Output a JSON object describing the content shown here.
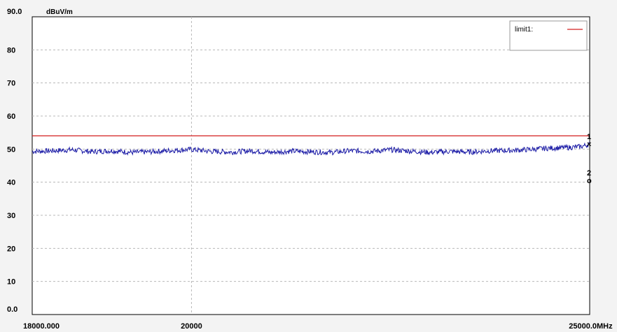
{
  "chart_data": {
    "type": "line",
    "ylabel": "dBuV/m",
    "xunit": "MHz",
    "xlim": [
      18000,
      25000
    ],
    "ylim": [
      0,
      90
    ],
    "y_ticks": [
      0,
      10,
      20,
      30,
      40,
      50,
      60,
      70,
      80,
      90
    ],
    "y_tick_labels": [
      "0.0",
      "10",
      "20",
      "30",
      "40",
      "50",
      "60",
      "70",
      "80",
      "90.0"
    ],
    "x_tick_labels": [
      "18000.000",
      "20000",
      "25000.0"
    ],
    "x_ticks": [
      18000,
      20000,
      25000
    ],
    "grid": true,
    "legend": {
      "position": "top-right",
      "entries": [
        {
          "label": "limit1:",
          "color": "#d42020"
        }
      ]
    },
    "limit_line": {
      "name": "limit1",
      "y": 54,
      "color": "#d42020"
    },
    "series": [
      {
        "color": "#1a1aa6",
        "x": [
          18000,
          18250,
          18500,
          18750,
          19000,
          19250,
          19500,
          19750,
          20000,
          20250,
          20500,
          20750,
          21000,
          21250,
          21500,
          21750,
          22000,
          22250,
          22500,
          22750,
          23000,
          23250,
          23500,
          23750,
          24000,
          24250,
          24500,
          24750,
          24900,
          25000
        ],
        "y": [
          49.3,
          49.5,
          49.8,
          49.2,
          49.5,
          49.0,
          49.2,
          49.6,
          49.9,
          49.3,
          49.1,
          49.5,
          49.0,
          49.4,
          49.2,
          49.0,
          49.5,
          49.3,
          49.8,
          49.4,
          49.0,
          49.3,
          49.1,
          49.5,
          49.6,
          49.9,
          50.3,
          50.5,
          50.8,
          51.5
        ]
      }
    ],
    "markers": [
      {
        "label": "1",
        "x": 25000,
        "y": 53
      },
      {
        "label": "2",
        "x": 25000,
        "y": 42
      }
    ]
  }
}
